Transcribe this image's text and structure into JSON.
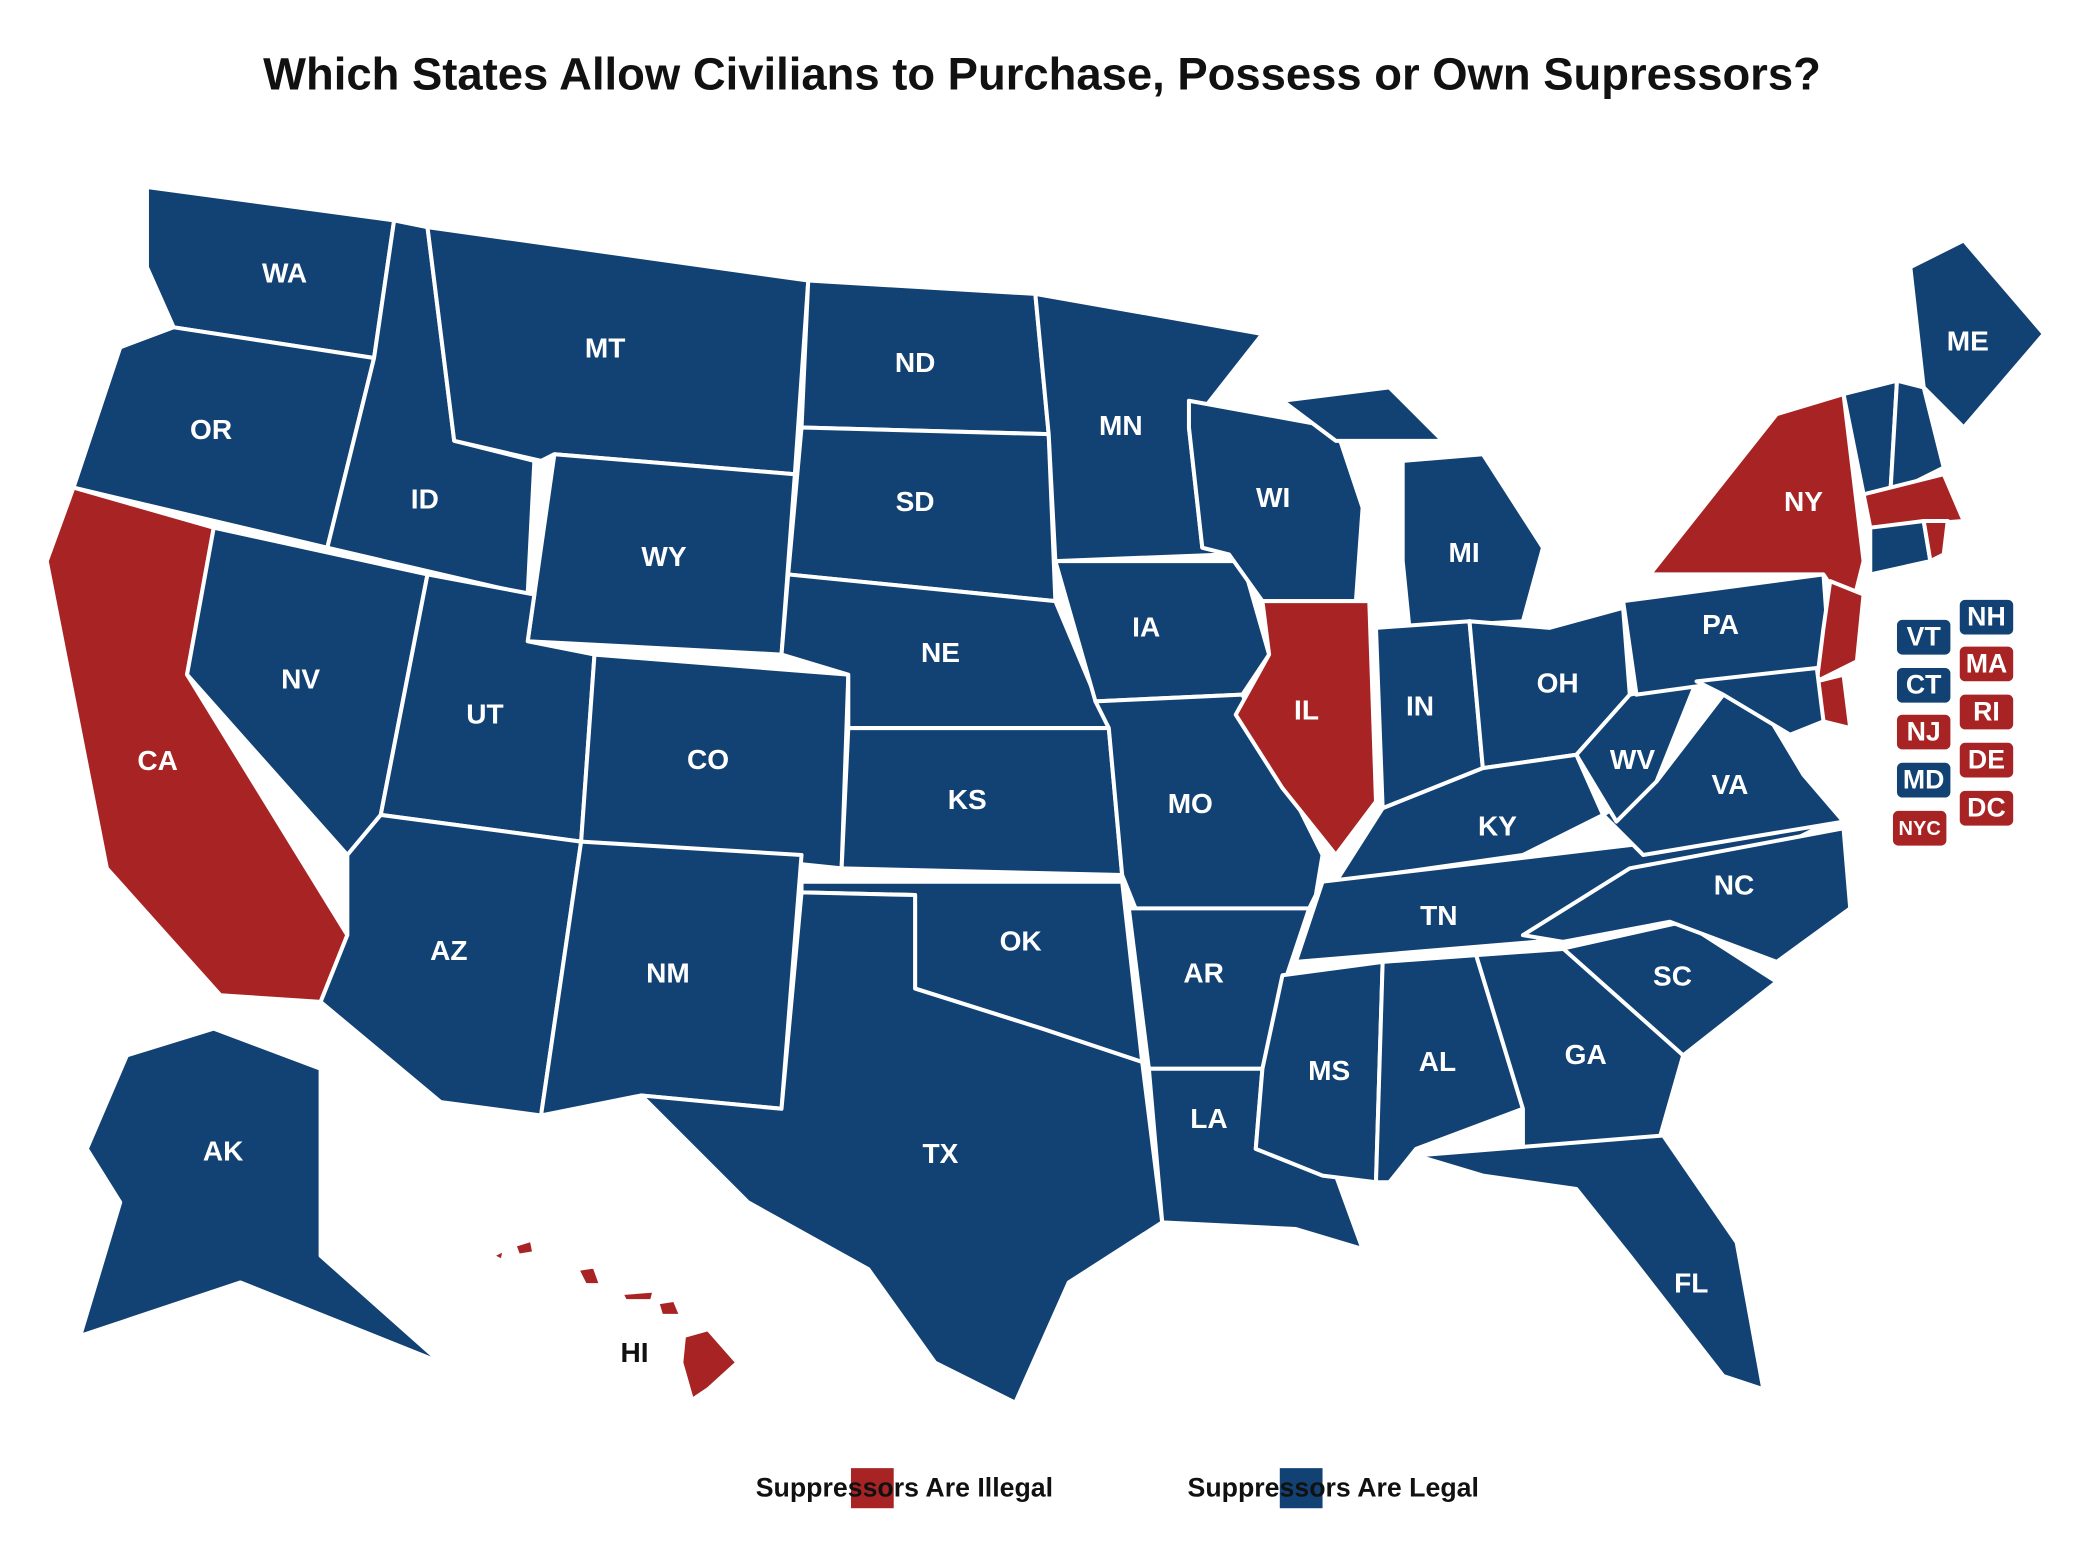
{
  "title": "Which States Allow Civilians to Purchase, Possess or Own Supressors?",
  "legend": [
    {
      "label": "Suppressors Are Illegal",
      "color": "#a82424"
    },
    {
      "label": "Suppressors Are Legal",
      "color": "#124273"
    }
  ],
  "regions": [
    {
      "label": "WA",
      "color": "#124273"
    },
    {
      "label": "OR",
      "color": "#124273"
    },
    {
      "label": "CA",
      "color": "#a82424"
    },
    {
      "label": "NV",
      "color": "#124273"
    },
    {
      "label": "ID",
      "color": "#124273"
    },
    {
      "label": "MT",
      "color": "#124273"
    },
    {
      "label": "WY",
      "color": "#124273"
    },
    {
      "label": "UT",
      "color": "#124273"
    },
    {
      "label": "AZ",
      "color": "#124273"
    },
    {
      "label": "CO",
      "color": "#124273"
    },
    {
      "label": "NM",
      "color": "#124273"
    },
    {
      "label": "ND",
      "color": "#124273"
    },
    {
      "label": "SD",
      "color": "#124273"
    },
    {
      "label": "NE",
      "color": "#124273"
    },
    {
      "label": "KS",
      "color": "#124273"
    },
    {
      "label": "OK",
      "color": "#124273"
    },
    {
      "label": "TX",
      "color": "#124273"
    },
    {
      "label": "MN",
      "color": "#124273"
    },
    {
      "label": "IA",
      "color": "#124273"
    },
    {
      "label": "MO",
      "color": "#124273"
    },
    {
      "label": "AR",
      "color": "#124273"
    },
    {
      "label": "LA",
      "color": "#124273"
    },
    {
      "label": "WI",
      "color": "#124273"
    },
    {
      "label": "IL",
      "color": "#a82424"
    },
    {
      "label": "MI",
      "color": "#124273"
    },
    {
      "label": "IN",
      "color": "#124273"
    },
    {
      "label": "OH",
      "color": "#124273"
    },
    {
      "label": "KY",
      "color": "#124273"
    },
    {
      "label": "TN",
      "color": "#124273"
    },
    {
      "label": "MS",
      "color": "#124273"
    },
    {
      "label": "AL",
      "color": "#124273"
    },
    {
      "label": "GA",
      "color": "#124273"
    },
    {
      "label": "FL",
      "color": "#124273"
    },
    {
      "label": "SC",
      "color": "#124273"
    },
    {
      "label": "NC",
      "color": "#124273"
    },
    {
      "label": "VA",
      "color": "#124273"
    },
    {
      "label": "WV",
      "color": "#124273"
    },
    {
      "label": "PA",
      "color": "#124273"
    },
    {
      "label": "NY",
      "color": "#a82424"
    },
    {
      "label": "ME",
      "color": "#124273"
    },
    {
      "label": "AK",
      "color": "#124273"
    },
    {
      "label": "HI",
      "color": "#a82424"
    },
    {
      "label": "VT",
      "color": "#124273"
    },
    {
      "label": "NH",
      "color": "#124273"
    },
    {
      "label": "MA",
      "color": "#a82424"
    },
    {
      "label": "CT",
      "color": "#124273"
    },
    {
      "label": "RI",
      "color": "#a82424"
    },
    {
      "label": "NJ",
      "color": "#a82424"
    },
    {
      "label": "DE",
      "color": "#a82424"
    },
    {
      "label": "MD",
      "color": "#124273"
    },
    {
      "label": "DC",
      "color": "#a82424"
    },
    {
      "label": "NYC",
      "color": "#a82424"
    }
  ]
}
